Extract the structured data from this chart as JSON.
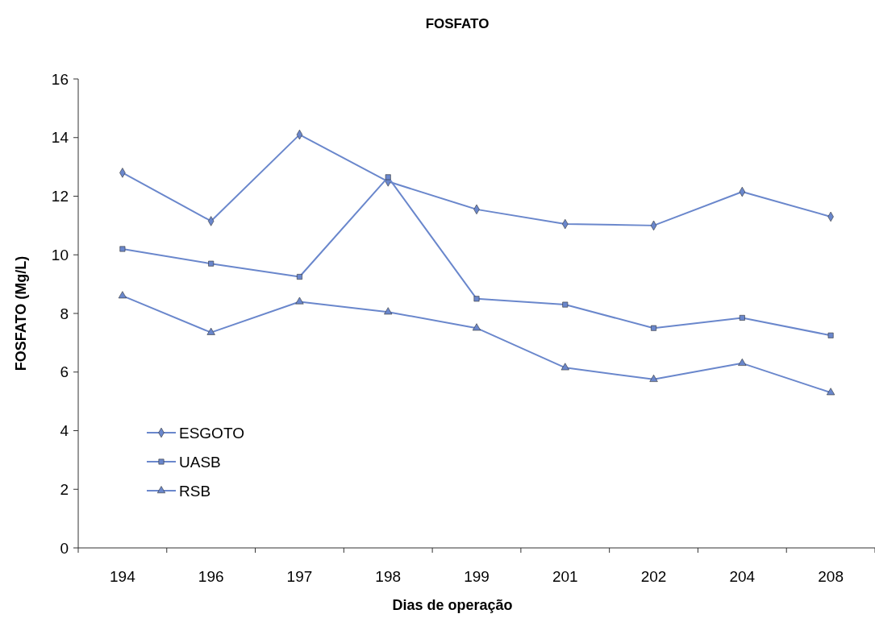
{
  "chart_data": {
    "type": "line",
    "title": "FOSFATO",
    "xlabel": "Dias de operação",
    "ylabel": "FOSFATO (Mg/L)",
    "categories": [
      "194",
      "196",
      "197",
      "198",
      "199",
      "201",
      "202",
      "204",
      "208"
    ],
    "series": [
      {
        "name": "ESGOTO",
        "color": "#6a87cc",
        "marker": "diamond",
        "values": [
          12.8,
          11.15,
          14.1,
          12.5,
          11.55,
          11.05,
          11.0,
          12.15,
          11.3
        ]
      },
      {
        "name": "UASB",
        "color": "#6a87cc",
        "marker": "square",
        "values": [
          10.2,
          9.7,
          9.25,
          12.65,
          8.5,
          8.3,
          7.5,
          7.85,
          7.25
        ]
      },
      {
        "name": "RSB",
        "color": "#6a87cc",
        "marker": "triangle",
        "values": [
          8.6,
          7.35,
          8.4,
          8.05,
          7.5,
          6.15,
          5.75,
          6.3,
          5.3
        ]
      }
    ],
    "ylim": [
      0,
      16
    ],
    "yticks": [
      0,
      2,
      4,
      6,
      8,
      10,
      12,
      14,
      16
    ],
    "grid": false,
    "legend": "bottom left"
  }
}
